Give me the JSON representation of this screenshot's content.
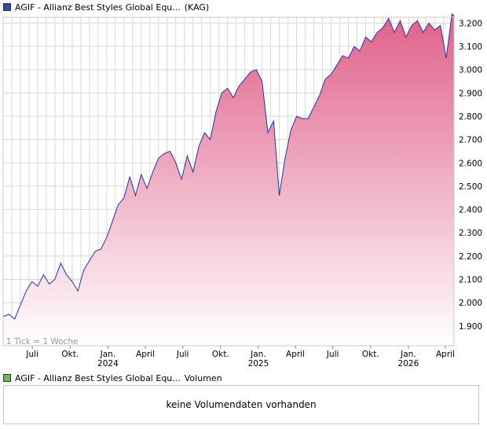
{
  "price_legend": {
    "title": "AGIF - Allianz Best Styles Global Equ...",
    "suffix": "(KAG)",
    "swatch_color": "#2a4ab5"
  },
  "volume_legend": {
    "title": "AGIF - Allianz Best Styles Global Equ...",
    "suffix": "Volumen",
    "swatch_color": "#66bb55"
  },
  "volume_panel": {
    "message": "keine Volumendaten vorhanden"
  },
  "tick_note": "1 Tick = 1 Woche",
  "colors": {
    "line": "#2233aa",
    "fill_top": "#e0608a",
    "fill_bottom": "#ffffff",
    "grid": "#d8d8d8"
  },
  "chart_data": {
    "type": "area",
    "title": "AGIF - Allianz Best Styles Global Equ... (KAG)",
    "xlabel": "",
    "ylabel": "",
    "x_start": "2023-04-21",
    "x_end": "2026-04-22",
    "ylim": [
      1.815,
      3.225
    ],
    "y_ticks": [
      "1.900",
      "2.000",
      "2.100",
      "2.200",
      "2.300",
      "2.400",
      "2.500",
      "2.600",
      "2.700",
      "2.800",
      "2.900",
      "3.000",
      "3.100",
      "3.200"
    ],
    "x_ticks": [
      {
        "label": "Juli",
        "date": "2023-07-01"
      },
      {
        "label": "Okt.",
        "date": "2023-10-01"
      },
      {
        "label": "Jan.",
        "date": "2024-01-01",
        "year": "2024"
      },
      {
        "label": "April",
        "date": "2024-04-01"
      },
      {
        "label": "Juli",
        "date": "2024-07-01"
      },
      {
        "label": "Okt.",
        "date": "2024-10-01"
      },
      {
        "label": "Jan.",
        "date": "2025-01-01",
        "year": "2025"
      },
      {
        "label": "April",
        "date": "2025-04-01"
      },
      {
        "label": "Juli",
        "date": "2025-07-01"
      },
      {
        "label": "Okt.",
        "date": "2025-10-01"
      },
      {
        "label": "Jan.",
        "date": "2026-01-01",
        "year": "2026"
      },
      {
        "label": "April",
        "date": "2026-04-01"
      }
    ],
    "grid": true,
    "series": [
      {
        "x": [
          "2023-04-21",
          "2023-05-05",
          "2023-05-19",
          "2023-06-02",
          "2023-06-16",
          "2023-06-30",
          "2023-07-14",
          "2023-07-28",
          "2023-08-11",
          "2023-08-25",
          "2023-09-08",
          "2023-09-22",
          "2023-10-06",
          "2023-10-20",
          "2023-11-03",
          "2023-11-17",
          "2023-12-01",
          "2023-12-15",
          "2023-12-29",
          "2024-01-12",
          "2024-01-26",
          "2024-02-09",
          "2024-02-23",
          "2024-03-08",
          "2024-03-22",
          "2024-04-05",
          "2024-04-19",
          "2024-05-03",
          "2024-05-17",
          "2024-05-31",
          "2024-06-14",
          "2024-06-28",
          "2024-07-12",
          "2024-07-26",
          "2024-08-09",
          "2024-08-23",
          "2024-09-06",
          "2024-09-20",
          "2024-10-04",
          "2024-10-18",
          "2024-11-01",
          "2024-11-15",
          "2024-11-29",
          "2024-12-13",
          "2024-12-27",
          "2025-01-10",
          "2025-01-24",
          "2025-02-07",
          "2025-02-21",
          "2025-03-07",
          "2025-03-21",
          "2025-04-04",
          "2025-04-18",
          "2025-05-02",
          "2025-05-16",
          "2025-05-30",
          "2025-06-13",
          "2025-06-27",
          "2025-07-11",
          "2025-07-25",
          "2025-08-08",
          "2025-08-22",
          "2025-09-05",
          "2025-09-19",
          "2025-10-03",
          "2025-10-17",
          "2025-10-31",
          "2025-11-14",
          "2025-11-28",
          "2025-12-12",
          "2025-12-26",
          "2026-01-09",
          "2026-01-23",
          "2026-02-06",
          "2026-02-20",
          "2026-03-06",
          "2026-03-20",
          "2026-04-03",
          "2026-04-17",
          "2026-04-22"
        ],
        "values": [
          1.94,
          1.95,
          1.93,
          1.99,
          2.05,
          2.09,
          2.07,
          2.12,
          2.08,
          2.1,
          2.17,
          2.12,
          2.09,
          2.05,
          2.14,
          2.18,
          2.22,
          2.23,
          2.28,
          2.35,
          2.42,
          2.45,
          2.54,
          2.46,
          2.55,
          2.49,
          2.56,
          2.62,
          2.64,
          2.65,
          2.6,
          2.53,
          2.63,
          2.56,
          2.67,
          2.73,
          2.7,
          2.82,
          2.9,
          2.92,
          2.88,
          2.93,
          2.96,
          2.99,
          3.0,
          2.95,
          2.73,
          2.78,
          2.46,
          2.62,
          2.74,
          2.8,
          2.79,
          2.79,
          2.84,
          2.89,
          2.96,
          2.98,
          3.02,
          3.06,
          3.05,
          3.1,
          3.08,
          3.14,
          3.12,
          3.16,
          3.18,
          3.22,
          3.16,
          3.21,
          3.14,
          3.19,
          3.21,
          3.16,
          3.2,
          3.17,
          3.19,
          3.05,
          3.24,
          3.23
        ]
      }
    ]
  }
}
